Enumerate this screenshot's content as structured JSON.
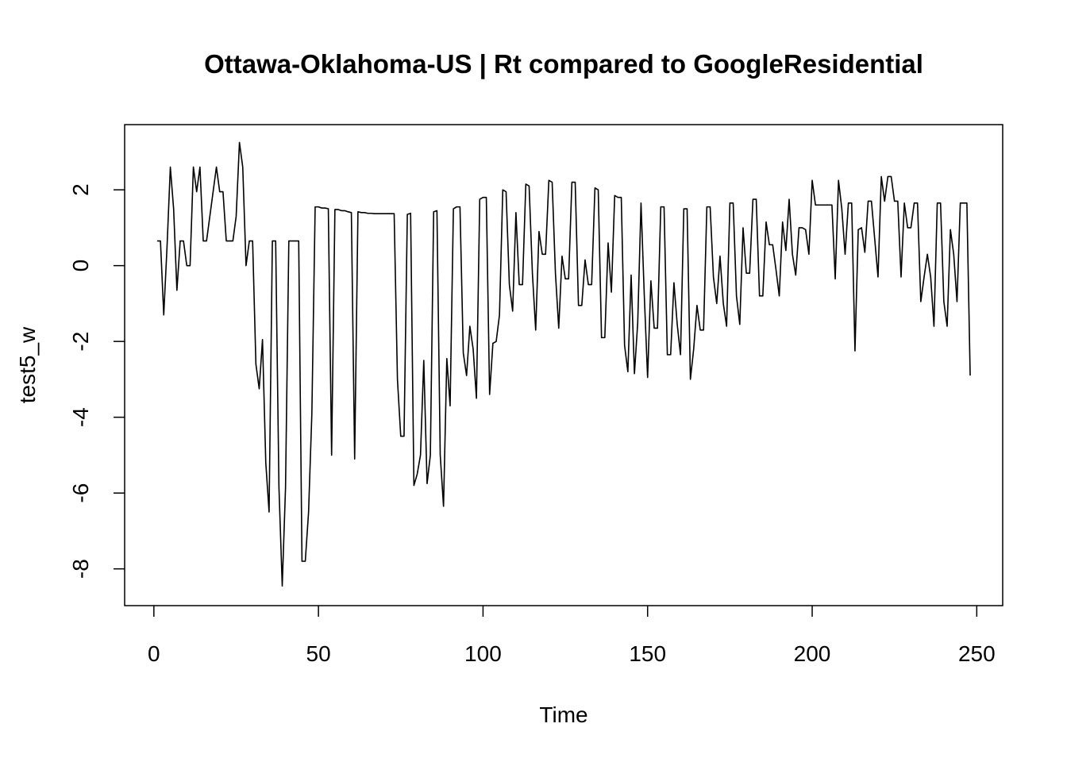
{
  "chart_data": {
    "type": "line",
    "title": "Ottawa-Oklahoma-US | Rt compared to GoogleResidential",
    "x_label": "Time",
    "y_label": "test5_w",
    "x": [
      1,
      2,
      3,
      4,
      5,
      6,
      7,
      8,
      9,
      10,
      11,
      12,
      13,
      14,
      15,
      16,
      17,
      18,
      19,
      20,
      21,
      22,
      23,
      24,
      25,
      26,
      27,
      28,
      29,
      30,
      31,
      32,
      33,
      34,
      35,
      36,
      37,
      38,
      39,
      40,
      41,
      42,
      43,
      44,
      45,
      46,
      47,
      48,
      49,
      50,
      51,
      52,
      53,
      54,
      55,
      56,
      57,
      58,
      59,
      60,
      61,
      62,
      63,
      64,
      65,
      66,
      67,
      68,
      69,
      70,
      71,
      72,
      73,
      74,
      75,
      76,
      77,
      78,
      79,
      80,
      81,
      82,
      83,
      84,
      85,
      86,
      87,
      88,
      89,
      90,
      91,
      92,
      93,
      94,
      95,
      96,
      97,
      98,
      99,
      100,
      101,
      102,
      103,
      104,
      105,
      106,
      107,
      108,
      109,
      110,
      111,
      112,
      113,
      114,
      115,
      116,
      117,
      118,
      119,
      120,
      121,
      122,
      123,
      124,
      125,
      126,
      127,
      128,
      129,
      130,
      131,
      132,
      133,
      134,
      135,
      136,
      137,
      138,
      139,
      140,
      141,
      142,
      143,
      144,
      145,
      146,
      147,
      148,
      149,
      150,
      151,
      152,
      153,
      154,
      155,
      156,
      157,
      158,
      159,
      160,
      161,
      162,
      163,
      164,
      165,
      166,
      167,
      168,
      169,
      170,
      171,
      172,
      173,
      174,
      175,
      176,
      177,
      178,
      179,
      180,
      181,
      182,
      183,
      184,
      185,
      186,
      187,
      188,
      189,
      190,
      191,
      192,
      193,
      194,
      195,
      196,
      197,
      198,
      199,
      200,
      201,
      202,
      203,
      204,
      205,
      206,
      207,
      208,
      209,
      210,
      211,
      212,
      213,
      214,
      215,
      216,
      217,
      218,
      219,
      220,
      221,
      222,
      223,
      224,
      225,
      226,
      227,
      228,
      229,
      230,
      231,
      232,
      233,
      234,
      235,
      236,
      237,
      238,
      239,
      240,
      241,
      242,
      243,
      244,
      245,
      246,
      247,
      248
    ],
    "series": [
      {
        "color": "#000000",
        "values": [
          0.65,
          0.65,
          -1.3,
          0.5,
          2.6,
          1.5,
          -0.65,
          0.65,
          0.65,
          0,
          0,
          2.6,
          1.95,
          2.6,
          0.65,
          0.65,
          1.3,
          1.95,
          2.6,
          1.95,
          1.95,
          0.65,
          0.65,
          0.65,
          1.3,
          3.25,
          2.6,
          0,
          0.65,
          0.65,
          -2.6,
          -3.25,
          -1.95,
          -5.2,
          -6.5,
          0.65,
          0.65,
          -5.85,
          -8.45,
          -5.85,
          0.65,
          0.65,
          0.65,
          0.65,
          -7.8,
          -7.8,
          -6.5,
          -3.9,
          1.55,
          1.55,
          1.52,
          1.52,
          1.5,
          -5.0,
          1.48,
          1.48,
          1.45,
          1.45,
          1.42,
          1.4,
          -5.1,
          1.42,
          1.4,
          1.4,
          1.38,
          1.38,
          1.37,
          1.37,
          1.37,
          1.37,
          1.37,
          1.37,
          1.37,
          -3.0,
          -4.5,
          -4.5,
          1.35,
          1.38,
          -5.8,
          -5.5,
          -5.0,
          -2.5,
          -5.75,
          -5.0,
          1.42,
          1.45,
          -5.0,
          -6.35,
          -2.45,
          -3.7,
          1.5,
          1.55,
          1.55,
          -2.3,
          -2.9,
          -1.6,
          -2.2,
          -3.5,
          1.75,
          1.8,
          1.8,
          -3.4,
          -2.05,
          -2.0,
          -1.3,
          2.0,
          1.95,
          -0.5,
          -1.2,
          1.4,
          -0.5,
          -0.5,
          2.15,
          2.1,
          -0.2,
          -1.7,
          0.9,
          0.3,
          0.3,
          2.25,
          2.2,
          -0.2,
          -1.65,
          0.25,
          -0.35,
          -0.35,
          2.2,
          2.2,
          -1.05,
          -1.05,
          0.15,
          -0.5,
          -0.5,
          2.05,
          2.0,
          -1.9,
          -1.9,
          0.6,
          -0.7,
          1.85,
          1.8,
          1.8,
          -2.1,
          -2.8,
          -0.25,
          -2.85,
          -1.5,
          1.65,
          -0.8,
          -2.95,
          -0.4,
          -1.65,
          -1.65,
          1.55,
          1.55,
          -2.35,
          -2.35,
          -0.45,
          -1.55,
          -2.35,
          1.5,
          1.5,
          -3.0,
          -2.2,
          -1.05,
          -1.7,
          -1.7,
          1.55,
          1.55,
          -0.3,
          -1.0,
          0.25,
          -1.0,
          -1.6,
          1.65,
          1.65,
          -0.8,
          -1.55,
          1.0,
          -0.2,
          -0.2,
          1.75,
          1.75,
          -0.8,
          -0.8,
          1.15,
          0.55,
          0.55,
          -0.1,
          -0.8,
          1.15,
          0.4,
          1.75,
          0.3,
          -0.25,
          1.0,
          1.0,
          0.95,
          0.3,
          2.25,
          1.6,
          1.6,
          1.6,
          1.6,
          1.6,
          1.6,
          -0.35,
          2.25,
          1.5,
          0.3,
          1.65,
          1.65,
          -2.25,
          0.95,
          1.0,
          0.35,
          1.7,
          1.7,
          0.7,
          -0.3,
          2.35,
          1.7,
          2.35,
          2.35,
          1.7,
          1.7,
          -0.3,
          1.65,
          1.0,
          1.0,
          1.65,
          1.65,
          -0.95,
          -0.3,
          0.3,
          -0.3,
          -1.6,
          1.65,
          1.65,
          -0.95,
          -1.6,
          0.95,
          0.3,
          -0.95,
          1.65,
          1.65,
          1.65,
          -2.9
        ]
      }
    ],
    "xlim": [
      -8.88,
      257.88
    ],
    "ylim": [
      -8.97,
      3.72
    ],
    "xticks": [
      0,
      50,
      100,
      150,
      200,
      250
    ],
    "yticks": [
      -8,
      -6,
      -4,
      -2,
      0,
      2
    ],
    "grid": false
  }
}
